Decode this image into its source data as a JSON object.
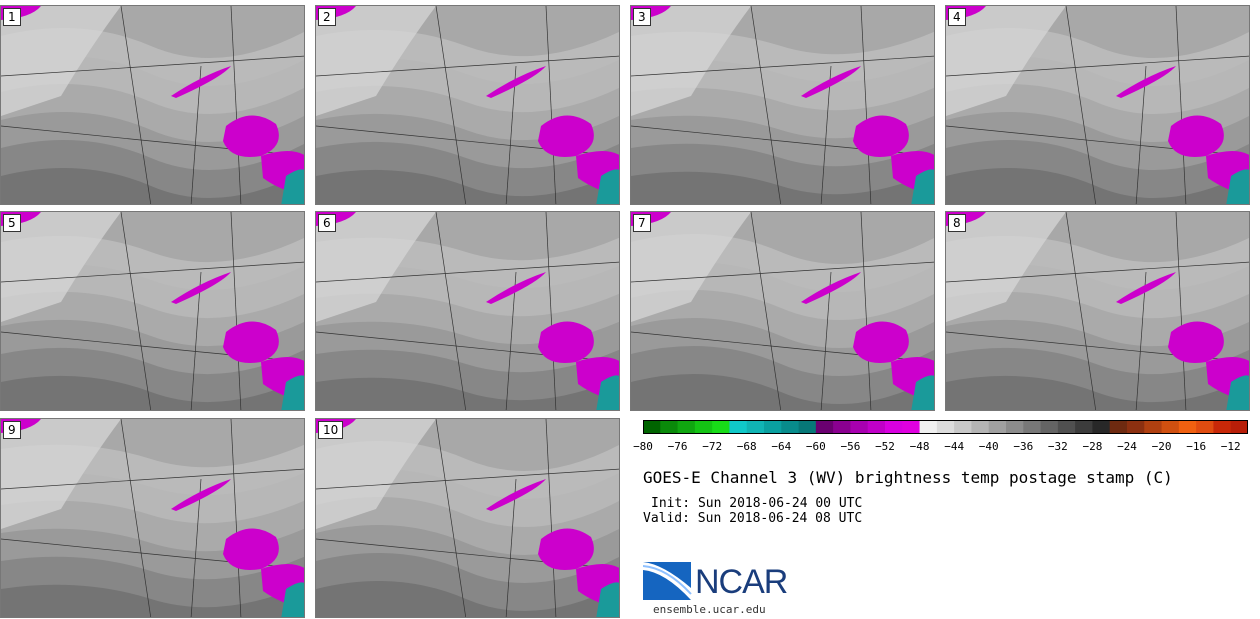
{
  "panels": [
    {
      "label": "1"
    },
    {
      "label": "2"
    },
    {
      "label": "3"
    },
    {
      "label": "4"
    },
    {
      "label": "5"
    },
    {
      "label": "6"
    },
    {
      "label": "7"
    },
    {
      "label": "8"
    },
    {
      "label": "9"
    },
    {
      "label": "10"
    }
  ],
  "colorbar": {
    "tick_labels": [
      "−80",
      "−76",
      "−72",
      "−68",
      "−64",
      "−60",
      "−56",
      "−52",
      "−48",
      "−44",
      "−40",
      "−36",
      "−32",
      "−28",
      "−24",
      "−20",
      "−16",
      "−12"
    ],
    "colors": [
      "#006400",
      "#0a8a0a",
      "#10a610",
      "#14c414",
      "#18dc18",
      "#10c8c8",
      "#10b4b4",
      "#0aa0a0",
      "#088c8c",
      "#077878",
      "#6a0070",
      "#8a0090",
      "#a800b0",
      "#c000c8",
      "#d800e0",
      "#e000e0",
      "#f0f0f0",
      "#dcdcdc",
      "#c8c8c8",
      "#b4b4b4",
      "#a0a0a0",
      "#8c8c8c",
      "#787878",
      "#646464",
      "#505050",
      "#3c3c3c",
      "#282828",
      "#6e2a10",
      "#8c3010",
      "#b04010",
      "#d05010",
      "#f06010",
      "#e04c10",
      "#c82808",
      "#b81e08"
    ],
    "colors_color_note": "ordered -80 to -10 in 2 degree steps"
  },
  "title": "GOES-E Channel 3 (WV) brightness temp postage stamp (C)",
  "init_label": "Init: Sun 2018-06-24 00 UTC",
  "valid_label": "Valid: Sun 2018-06-24 08 UTC",
  "logo": {
    "text": "NCAR",
    "url": "ensemble.ucar.edu"
  }
}
